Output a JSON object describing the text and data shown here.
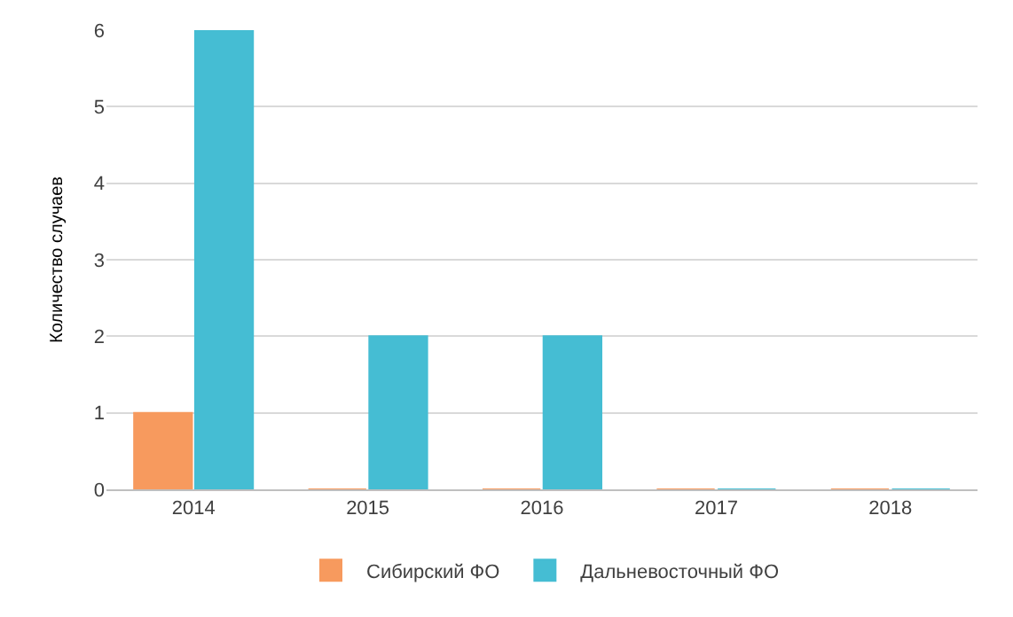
{
  "chart_data": {
    "type": "bar",
    "ylabel": "Количество случаев",
    "categories": [
      "2014",
      "2015",
      "2016",
      "2017",
      "2018"
    ],
    "series": [
      {
        "name": "Сибирский ФО",
        "color": "#f79a5e",
        "values": [
          1,
          0,
          0,
          0,
          0
        ]
      },
      {
        "name": "Дальневосточный ФО",
        "color": "#45bdd3",
        "values": [
          6,
          2,
          2,
          0,
          0
        ]
      }
    ],
    "ylim": [
      0,
      6
    ],
    "yticks": [
      0,
      1,
      2,
      3,
      4,
      5,
      6
    ],
    "grid": "y",
    "legend": "bottom"
  }
}
